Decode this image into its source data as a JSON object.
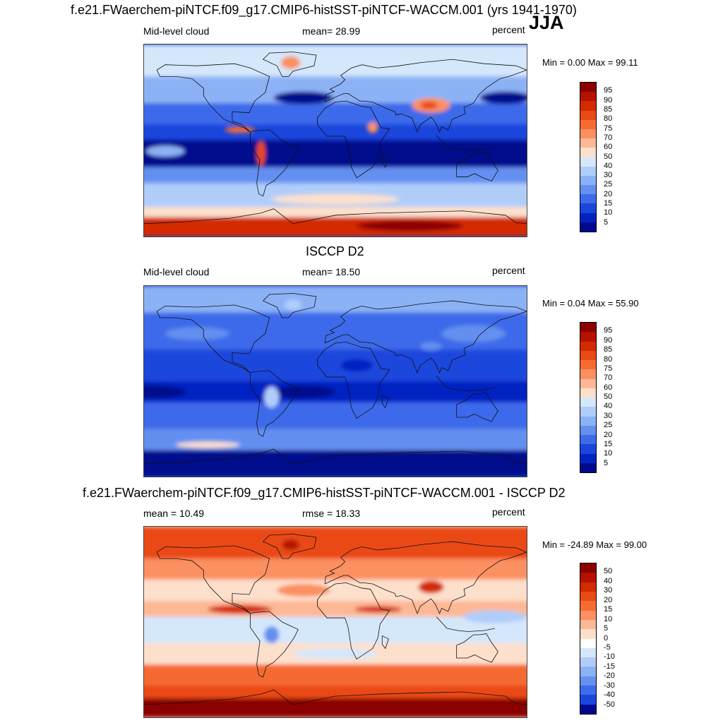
{
  "season": "JJA",
  "panels": [
    {
      "title": "f.e21.FWaerchem-piNTCF.f09_g17.CMIP6-histSST-piNTCF-WACCM.001 (yrs 1941-1970)",
      "left": "Mid-level cloud",
      "center": "mean=  28.99",
      "units": "percent",
      "minmax": "Min =   0.00 Max =  99.11",
      "scale": "abs"
    },
    {
      "title": "ISCCP D2",
      "left": "Mid-level cloud",
      "center": "mean=  18.50",
      "units": "percent",
      "minmax": "Min =   0.04 Max =  55.90",
      "scale": "abs"
    },
    {
      "title": "f.e21.FWaerchem-piNTCF.f09_g17.CMIP6-histSST-piNTCF-WACCM.001 - ISCCP D2",
      "left": "mean =  10.49",
      "center": "rmse =  18.33",
      "units": "percent",
      "minmax": "Min = -24.89 Max =  99.00",
      "scale": "diff"
    }
  ],
  "colorbars": {
    "abs": {
      "labels": [
        "95",
        "90",
        "85",
        "80",
        "75",
        "70",
        "60",
        "50",
        "40",
        "30",
        "25",
        "20",
        "15",
        "10",
        "5"
      ],
      "colors": [
        "#8b0000",
        "#b31300",
        "#d42a00",
        "#ea4a14",
        "#f56b32",
        "#fb9060",
        "#fdb896",
        "#fde0cc",
        "#d5e7fb",
        "#b0cdfa",
        "#8cb2f6",
        "#6490f0",
        "#3d6bea",
        "#1b46dc",
        "#0024c2",
        "#000a8c"
      ]
    },
    "diff": {
      "labels": [
        "50",
        "40",
        "30",
        "20",
        "15",
        "10",
        "5",
        "0",
        "-5",
        "-10",
        "-15",
        "-20",
        "-30",
        "-40",
        "-50"
      ],
      "colors": [
        "#8b0000",
        "#b31300",
        "#d42a00",
        "#ea4a14",
        "#f56b32",
        "#fb9060",
        "#fdb896",
        "#fde0cc",
        "#ffffff",
        "#d5e7fb",
        "#b0cdfa",
        "#8cb2f6",
        "#6490f0",
        "#3d6bea",
        "#1b46dc",
        "#000a8c"
      ]
    }
  },
  "map_fields": {
    "panel1": {
      "base": "#1b46dc",
      "bands": [
        {
          "lat": [
            60,
            90
          ],
          "color": "#d5e7fb"
        },
        {
          "lat": [
            35,
            60
          ],
          "color": "#8cb2f6"
        },
        {
          "lat": [
            15,
            35
          ],
          "color": "#3d6bea"
        },
        {
          "lat": [
            -25,
            0
          ],
          "color": "#000a8c"
        },
        {
          "lat": [
            -40,
            -25
          ],
          "color": "#6490f0"
        },
        {
          "lat": [
            -62,
            -40
          ],
          "color": "#b0cdfa"
        },
        {
          "lat": [
            -72,
            -62
          ],
          "color": "#fde0cc"
        },
        {
          "lat": [
            -90,
            -72
          ],
          "color": "#d42a00"
        }
      ],
      "blobs": [
        {
          "lon": 90,
          "lat": 33,
          "rx": 18,
          "ry": 7,
          "color": "#fb9060"
        },
        {
          "lon": 88,
          "lat": 33,
          "rx": 8,
          "ry": 3.5,
          "color": "#ea4a14"
        },
        {
          "lon": -42,
          "lat": 73,
          "rx": 9,
          "ry": 6,
          "color": "#fb9060"
        },
        {
          "lon": -70,
          "lat": -12,
          "rx": 4,
          "ry": 12,
          "color": "#ea4a14"
        },
        {
          "lon": -90,
          "lat": 10,
          "rx": 14,
          "ry": 3,
          "color": "#f56b32"
        },
        {
          "lon": 35,
          "lat": 12,
          "rx": 5,
          "ry": 5,
          "color": "#fb9060"
        },
        {
          "lon": 160,
          "lat": 40,
          "rx": 24,
          "ry": 6,
          "color": "#000a8c"
        },
        {
          "lon": -30,
          "lat": 40,
          "rx": 28,
          "ry": 6,
          "color": "#000a8c"
        },
        {
          "lon": 0,
          "lat": -55,
          "rx": 60,
          "ry": 5,
          "color": "#fde0cc"
        },
        {
          "lon": -160,
          "lat": -10,
          "rx": 18,
          "ry": 5,
          "color": "#8cb2f6"
        },
        {
          "lon": 70,
          "lat": -80,
          "rx": 50,
          "ry": 5,
          "color": "#8b0000"
        }
      ]
    },
    "panel2": {
      "base": "#1b46dc",
      "bands": [
        {
          "lat": [
            65,
            90
          ],
          "color": "#8cb2f6"
        },
        {
          "lat": [
            30,
            65
          ],
          "color": "#3d6bea"
        },
        {
          "lat": [
            0,
            30
          ],
          "color": "#1b46dc"
        },
        {
          "lat": [
            -20,
            0
          ],
          "color": "#0024c2"
        },
        {
          "lat": [
            -45,
            -20
          ],
          "color": "#3d6bea"
        },
        {
          "lat": [
            -65,
            -45
          ],
          "color": "#6490f0"
        },
        {
          "lat": [
            -90,
            -65
          ],
          "color": "#000a8c"
        }
      ],
      "blobs": [
        {
          "lon": -175,
          "lat": -10,
          "rx": 35,
          "ry": 6,
          "color": "#000a8c"
        },
        {
          "lon": -30,
          "lat": -10,
          "rx": 30,
          "ry": 6,
          "color": "#000a8c"
        },
        {
          "lon": 20,
          "lat": 15,
          "rx": 15,
          "ry": 6,
          "color": "#0024c2"
        },
        {
          "lon": -60,
          "lat": -15,
          "rx": 7,
          "ry": 10,
          "color": "#b0cdfa"
        },
        {
          "lon": 90,
          "lat": 33,
          "rx": 10,
          "ry": 4,
          "color": "#6490f0"
        },
        {
          "lon": -40,
          "lat": 72,
          "rx": 8,
          "ry": 5,
          "color": "#b0cdfa"
        },
        {
          "lon": 130,
          "lat": 45,
          "rx": 30,
          "ry": 8,
          "color": "#6490f0"
        },
        {
          "lon": -130,
          "lat": 45,
          "rx": 30,
          "ry": 6,
          "color": "#6490f0"
        },
        {
          "lon": -120,
          "lat": -60,
          "rx": 30,
          "ry": 3,
          "color": "#fde0cc"
        }
      ]
    },
    "panel3": {
      "base": "#fde0cc",
      "bands": [
        {
          "lat": [
            60,
            90
          ],
          "color": "#ea4a14"
        },
        {
          "lat": [
            40,
            60
          ],
          "color": "#fb9060"
        },
        {
          "lat": [
            20,
            40
          ],
          "color": "#fde0cc"
        },
        {
          "lat": [
            5,
            20
          ],
          "color": "#fdb896"
        },
        {
          "lat": [
            -20,
            5
          ],
          "color": "#d5e7fb"
        },
        {
          "lat": [
            -40,
            -20
          ],
          "color": "#fde0cc"
        },
        {
          "lat": [
            -60,
            -40
          ],
          "color": "#f56b32"
        },
        {
          "lat": [
            -72,
            -60
          ],
          "color": "#ea4a14"
        },
        {
          "lat": [
            -90,
            -72
          ],
          "color": "#8b0000"
        }
      ],
      "blobs": [
        {
          "lon": 90,
          "lat": 33,
          "rx": 12,
          "ry": 6,
          "color": "#d42a00"
        },
        {
          "lon": -42,
          "lat": 73,
          "rx": 8,
          "ry": 5,
          "color": "#b31300"
        },
        {
          "lon": -90,
          "lat": 12,
          "rx": 30,
          "ry": 4,
          "color": "#d42a00"
        },
        {
          "lon": 40,
          "lat": 12,
          "rx": 22,
          "ry": 3,
          "color": "#d42a00"
        },
        {
          "lon": -60,
          "lat": -12,
          "rx": 7,
          "ry": 8,
          "color": "#6490f0"
        },
        {
          "lon": 150,
          "lat": 5,
          "rx": 30,
          "ry": 6,
          "color": "#b0cdfa"
        },
        {
          "lon": -140,
          "lat": 0,
          "rx": 30,
          "ry": 5,
          "color": "#d5e7fb"
        },
        {
          "lon": -30,
          "lat": 30,
          "rx": 25,
          "ry": 6,
          "color": "#fb9060"
        },
        {
          "lon": 0,
          "lat": -30,
          "rx": 40,
          "ry": 5,
          "color": "#d5e7fb"
        }
      ]
    }
  }
}
